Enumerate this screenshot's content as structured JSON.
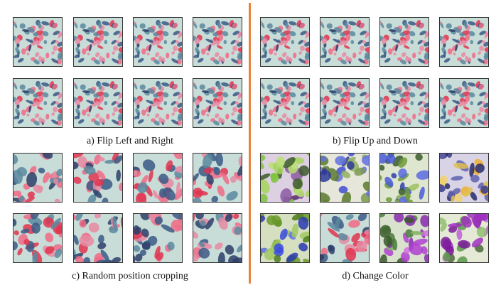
{
  "captions": {
    "a": "a) Flip Left and Right",
    "b": "b) Flip Up and Down",
    "c": "c) Random position cropping",
    "d": "d) Change Color"
  }
}
